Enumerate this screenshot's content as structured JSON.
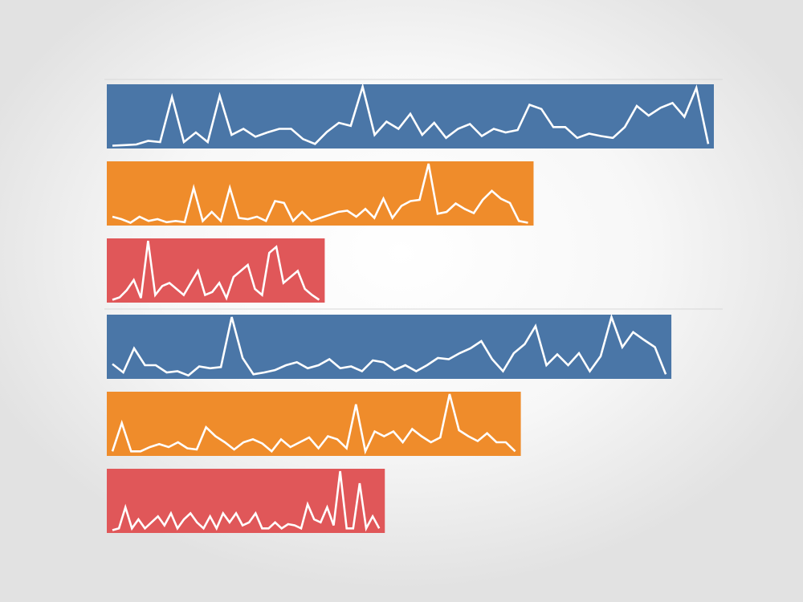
{
  "chart_data": {
    "type": "bar",
    "description_note": "",
    "groups": [
      {
        "bars": [
          {
            "value": 1.0,
            "color": "#4a76a7",
            "sparkline": [
              0.02,
              0.03,
              0.04,
              0.1,
              0.08,
              0.83,
              0.08,
              0.24,
              0.08,
              0.85,
              0.2,
              0.3,
              0.17,
              0.24,
              0.3,
              0.3,
              0.13,
              0.05,
              0.25,
              0.4,
              0.35,
              1.0,
              0.2,
              0.42,
              0.3,
              0.55,
              0.2,
              0.4,
              0.15,
              0.3,
              0.38,
              0.18,
              0.3,
              0.24,
              0.28,
              0.7,
              0.63,
              0.33,
              0.33,
              0.15,
              0.22,
              0.18,
              0.15,
              0.33,
              0.68,
              0.52,
              0.65,
              0.73,
              0.5,
              0.98,
              0.05
            ]
          },
          {
            "value": 0.703,
            "color": "#ef8c2b",
            "sparkline": [
              0.12,
              0.08,
              0.02,
              0.12,
              0.05,
              0.08,
              0.03,
              0.05,
              0.03,
              0.6,
              0.05,
              0.2,
              0.05,
              0.6,
              0.1,
              0.08,
              0.12,
              0.05,
              0.38,
              0.35,
              0.05,
              0.2,
              0.05,
              0.1,
              0.15,
              0.2,
              0.22,
              0.12,
              0.25,
              0.1,
              0.42,
              0.1,
              0.3,
              0.38,
              0.4,
              1.0,
              0.17,
              0.2,
              0.34,
              0.25,
              0.18,
              0.4,
              0.55,
              0.42,
              0.35,
              0.05,
              0.02
            ]
          },
          {
            "value": 0.359,
            "color": "#e05759",
            "sparkline": [
              0.02,
              0.06,
              0.18,
              0.35,
              0.05,
              1.0,
              0.1,
              0.25,
              0.3,
              0.2,
              0.1,
              0.3,
              0.5,
              0.1,
              0.15,
              0.3,
              0.05,
              0.4,
              0.5,
              0.6,
              0.2,
              0.1,
              0.8,
              0.9,
              0.3,
              0.4,
              0.5,
              0.2,
              0.1,
              0.02
            ]
          }
        ]
      },
      {
        "bars": [
          {
            "value": 0.93,
            "color": "#4a76a7",
            "sparkline": [
              0.22,
              0.08,
              0.48,
              0.2,
              0.2,
              0.08,
              0.1,
              0.03,
              0.18,
              0.15,
              0.17,
              1.0,
              0.32,
              0.05,
              0.08,
              0.12,
              0.2,
              0.25,
              0.15,
              0.2,
              0.3,
              0.15,
              0.18,
              0.1,
              0.28,
              0.25,
              0.12,
              0.2,
              0.1,
              0.2,
              0.32,
              0.3,
              0.4,
              0.48,
              0.6,
              0.3,
              0.1,
              0.4,
              0.55,
              0.85,
              0.2,
              0.38,
              0.2,
              0.4,
              0.1,
              0.35,
              1.0,
              0.5,
              0.75,
              0.62,
              0.5,
              0.05
            ]
          },
          {
            "value": 0.682,
            "color": "#ef8c2b",
            "sparkline": [
              0.05,
              0.52,
              0.05,
              0.05,
              0.12,
              0.17,
              0.12,
              0.2,
              0.1,
              0.08,
              0.45,
              0.3,
              0.2,
              0.08,
              0.2,
              0.25,
              0.18,
              0.05,
              0.25,
              0.12,
              0.2,
              0.28,
              0.1,
              0.3,
              0.25,
              0.1,
              0.83,
              0.05,
              0.38,
              0.3,
              0.38,
              0.2,
              0.42,
              0.3,
              0.2,
              0.28,
              1.0,
              0.4,
              0.3,
              0.22,
              0.35,
              0.2,
              0.2,
              0.05
            ]
          },
          {
            "value": 0.458,
            "color": "#e05759",
            "sparkline": [
              0.02,
              0.05,
              0.4,
              0.05,
              0.2,
              0.05,
              0.15,
              0.25,
              0.1,
              0.3,
              0.05,
              0.2,
              0.3,
              0.15,
              0.05,
              0.25,
              0.05,
              0.3,
              0.15,
              0.3,
              0.1,
              0.15,
              0.3,
              0.05,
              0.05,
              0.15,
              0.05,
              0.12,
              0.1,
              0.05,
              0.45,
              0.2,
              0.15,
              0.4,
              0.1,
              1.0,
              0.05,
              0.05,
              0.8,
              0.05,
              0.25,
              0.05
            ]
          }
        ]
      }
    ]
  }
}
